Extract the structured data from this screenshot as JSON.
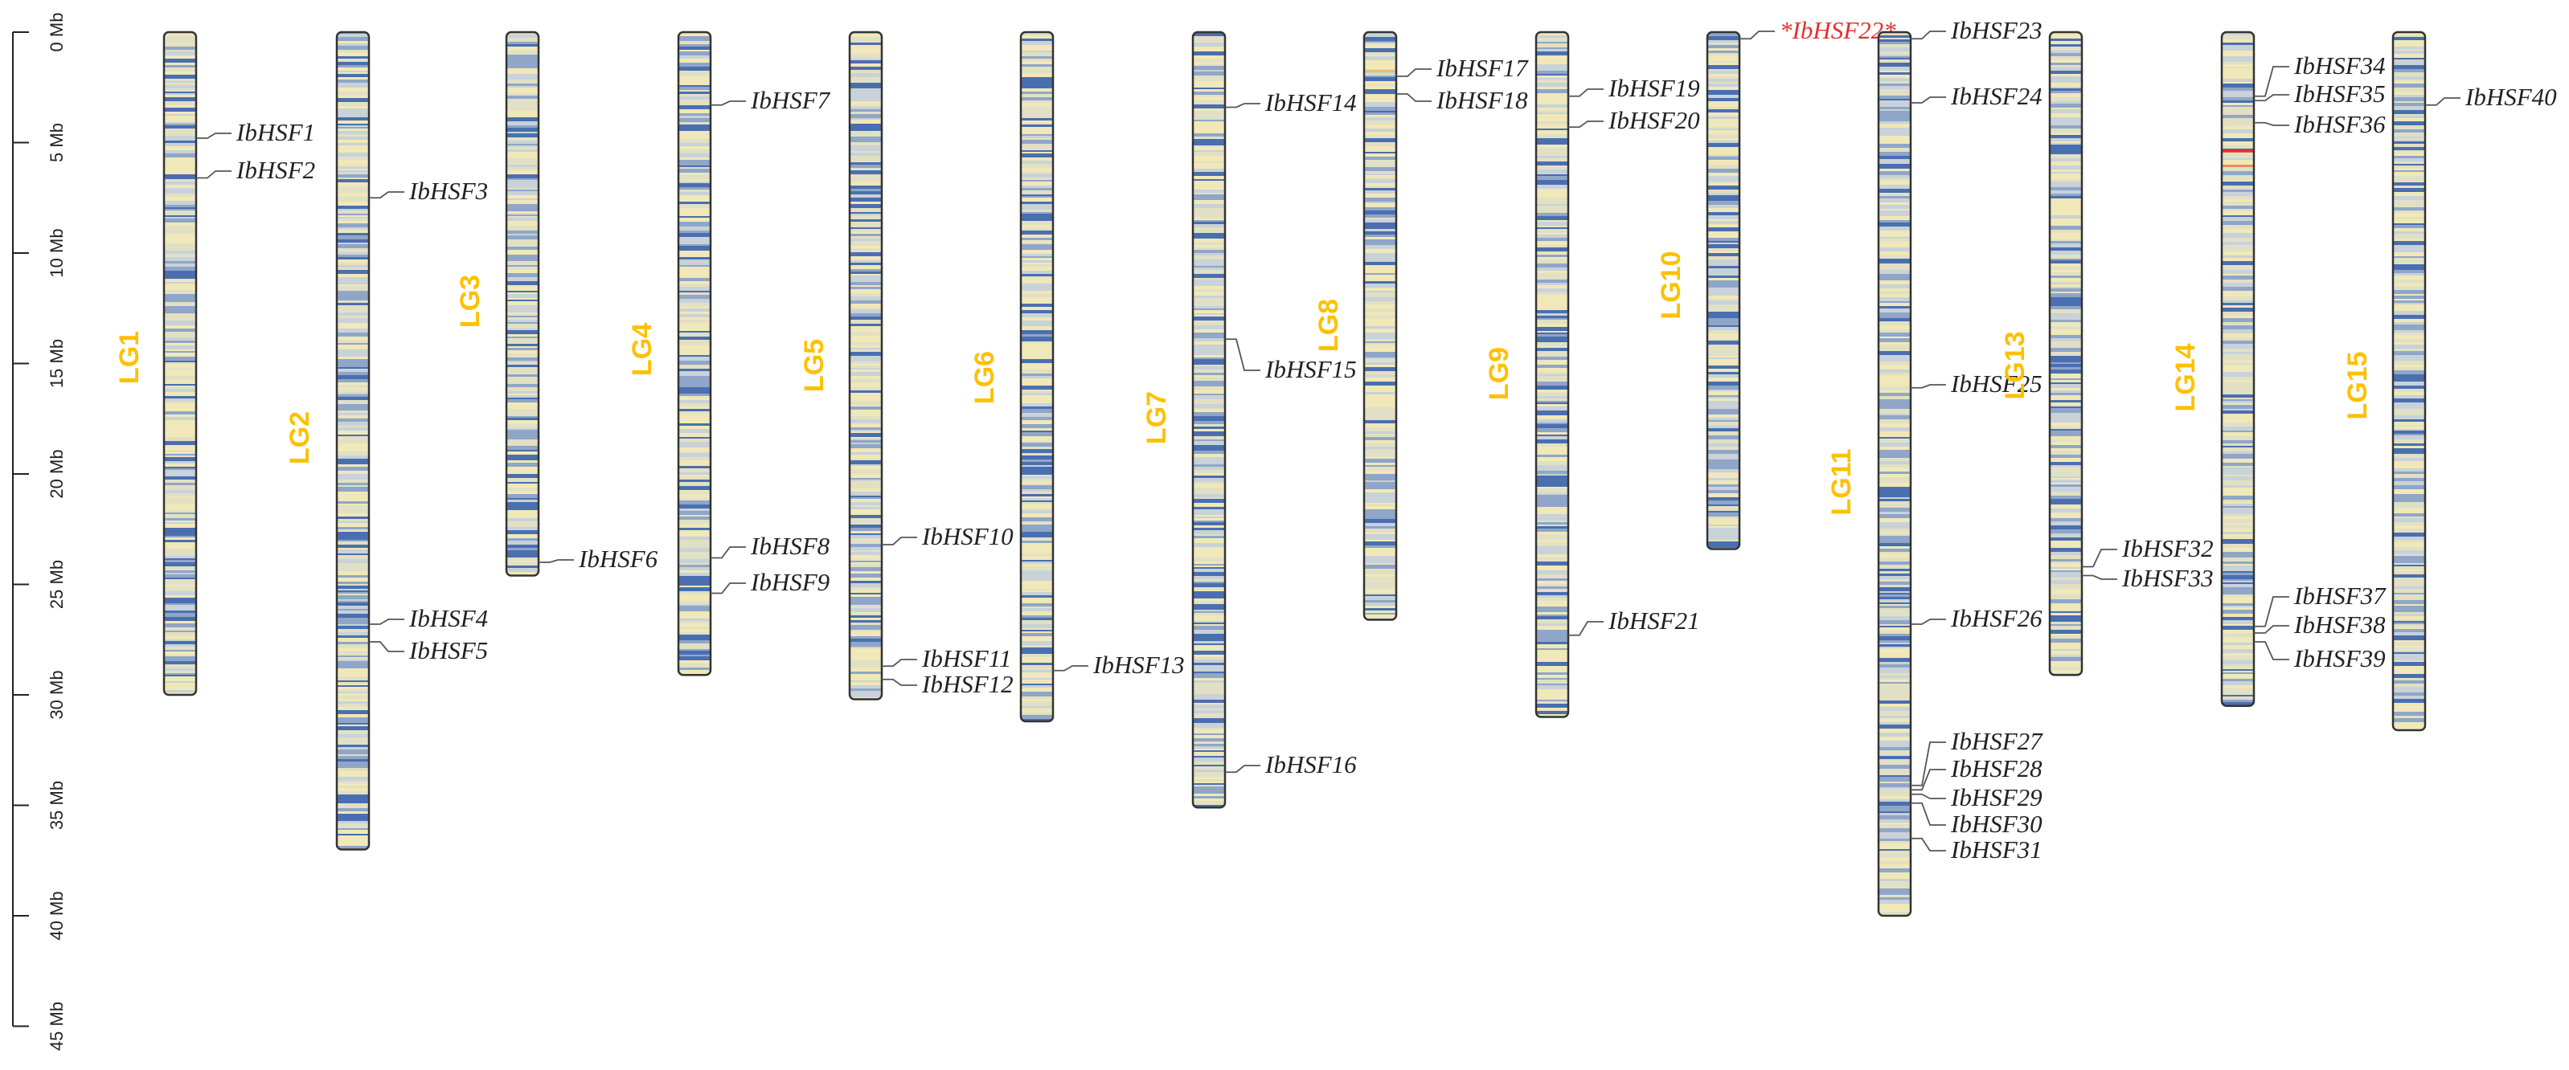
{
  "figure": {
    "axis": {
      "unit": "Mb",
      "ticks": [
        "0 Mb",
        "5 Mb",
        "10 Mb",
        "15 Mb",
        "20 Mb",
        "25 Mb",
        "30 Mb",
        "35 Mb",
        "40 Mb",
        "45 Mb"
      ],
      "max_mb": 45
    },
    "colors": {
      "lg_label": "#FFC000",
      "gene_label": "#222222",
      "highlight": "#E53030",
      "density_low": "#F0E8B8",
      "density_mid": "#C8D2D8",
      "density_high": "#4A6FB0",
      "outline": "#333333"
    },
    "chromosomes": [
      {
        "name": "LG1",
        "length_mb": 30.0,
        "genes": [
          {
            "name": "IbHSF1",
            "pos_mb": 4.8
          },
          {
            "name": "IbHSF2",
            "pos_mb": 6.6
          }
        ]
      },
      {
        "name": "LG2",
        "length_mb": 37.0,
        "genes": [
          {
            "name": "IbHSF3",
            "pos_mb": 7.5
          },
          {
            "name": "IbHSF4",
            "pos_mb": 26.8
          },
          {
            "name": "IbHSF5",
            "pos_mb": 27.6
          }
        ]
      },
      {
        "name": "LG3",
        "length_mb": 24.6,
        "genes": [
          {
            "name": "IbHSF6",
            "pos_mb": 24.0
          }
        ]
      },
      {
        "name": "LG4",
        "length_mb": 29.1,
        "genes": [
          {
            "name": "IbHSF7",
            "pos_mb": 3.3
          },
          {
            "name": "IbHSF8",
            "pos_mb": 23.8
          },
          {
            "name": "IbHSF9",
            "pos_mb": 25.4
          }
        ]
      },
      {
        "name": "LG5",
        "length_mb": 30.2,
        "genes": [
          {
            "name": "IbHSF10",
            "pos_mb": 23.2
          },
          {
            "name": "IbHSF11",
            "pos_mb": 28.7
          },
          {
            "name": "IbHSF12",
            "pos_mb": 29.3
          }
        ]
      },
      {
        "name": "LG6",
        "length_mb": 31.2,
        "genes": [
          {
            "name": "IbHSF13",
            "pos_mb": 28.9
          }
        ]
      },
      {
        "name": "LG7",
        "length_mb": 35.1,
        "genes": [
          {
            "name": "IbHSF14",
            "pos_mb": 3.4
          },
          {
            "name": "IbHSF15",
            "pos_mb": 13.9
          },
          {
            "name": "IbHSF16",
            "pos_mb": 33.5
          }
        ]
      },
      {
        "name": "LG8",
        "length_mb": 26.6,
        "genes": [
          {
            "name": "IbHSF17",
            "pos_mb": 2.0
          },
          {
            "name": "IbHSF18",
            "pos_mb": 2.8
          }
        ]
      },
      {
        "name": "LG9",
        "length_mb": 31.0,
        "genes": [
          {
            "name": "IbHSF19",
            "pos_mb": 2.9
          },
          {
            "name": "IbHSF20",
            "pos_mb": 4.3
          },
          {
            "name": "IbHSF21",
            "pos_mb": 27.3
          }
        ]
      },
      {
        "name": "LG10",
        "length_mb": 23.4,
        "genes": [
          {
            "name": "*IbHSF22*",
            "pos_mb": 0.3,
            "highlight": true
          }
        ]
      },
      {
        "name": "LG11",
        "length_mb": 40.0,
        "genes": [
          {
            "name": "IbHSF23",
            "pos_mb": 0.3
          },
          {
            "name": "IbHSF24",
            "pos_mb": 3.2
          },
          {
            "name": "IbHSF25",
            "pos_mb": 16.1
          },
          {
            "name": "IbHSF26",
            "pos_mb": 26.8
          },
          {
            "name": "IbHSF27",
            "pos_mb": 34.1
          },
          {
            "name": "IbHSF28",
            "pos_mb": 34.3
          },
          {
            "name": "IbHSF29",
            "pos_mb": 34.5
          },
          {
            "name": "IbHSF30",
            "pos_mb": 34.9
          },
          {
            "name": "IbHSF31",
            "pos_mb": 36.5
          }
        ]
      },
      {
        "name": "LG13",
        "length_mb": 29.1,
        "genes": [
          {
            "name": "IbHSF32",
            "pos_mb": 24.2
          },
          {
            "name": "IbHSF33",
            "pos_mb": 24.6
          }
        ]
      },
      {
        "name": "LG14",
        "length_mb": 30.5,
        "genes": [
          {
            "name": "IbHSF34",
            "pos_mb": 2.9
          },
          {
            "name": "IbHSF35",
            "pos_mb": 3.1
          },
          {
            "name": "IbHSF36",
            "pos_mb": 4.1
          },
          {
            "name": "IbHSF37",
            "pos_mb": 26.9
          },
          {
            "name": "IbHSF38",
            "pos_mb": 27.2
          },
          {
            "name": "IbHSF39",
            "pos_mb": 27.6
          }
        ]
      },
      {
        "name": "LG15",
        "length_mb": 31.6,
        "genes": [
          {
            "name": "IbHSF40",
            "pos_mb": 3.3
          }
        ]
      }
    ]
  }
}
